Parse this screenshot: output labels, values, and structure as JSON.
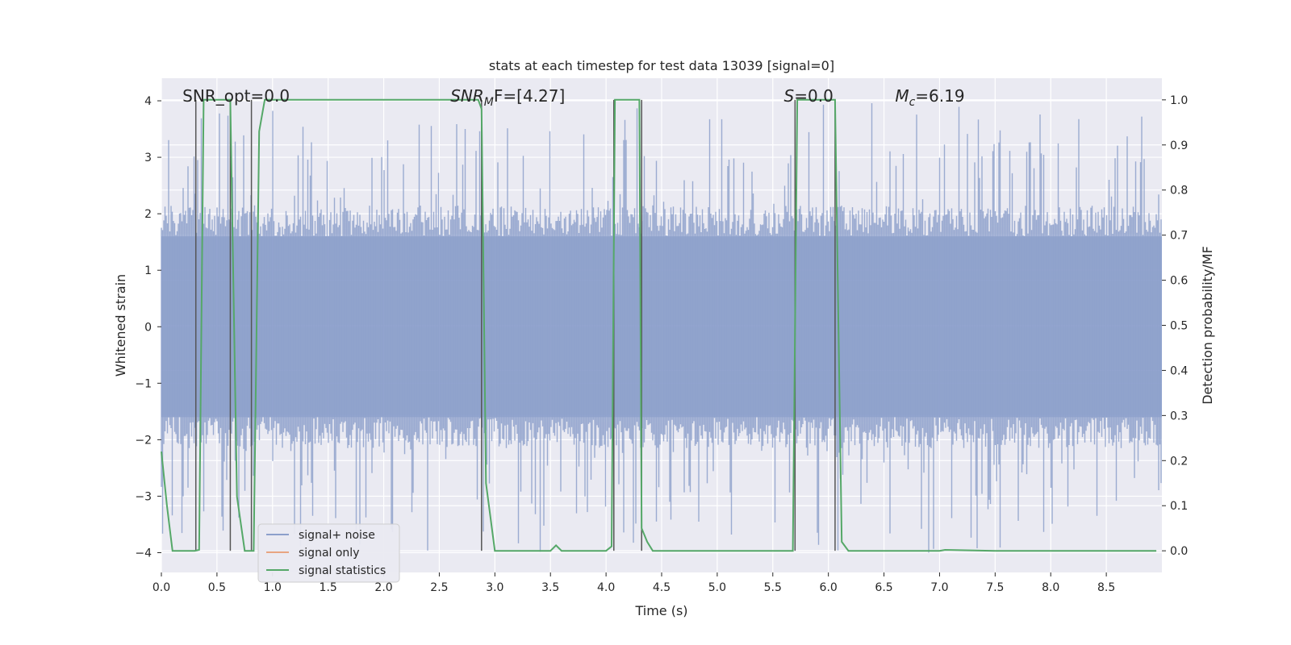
{
  "chart_data": {
    "type": "line",
    "title": "stats at each timestep for test data 13039 [signal=0]",
    "xlabel": "Time (s)",
    "ylabel": "Whitened strain",
    "ylabel_right": "Detection probability/MF",
    "xlim": [
      0.0,
      9.0
    ],
    "ylim": [
      -4.35,
      4.4
    ],
    "ylim_right": [
      -0.048,
      1.048
    ],
    "x_ticks": [
      "0.0",
      "0.5",
      "1.0",
      "1.5",
      "2.0",
      "2.5",
      "3.0",
      "3.5",
      "4.0",
      "4.5",
      "5.0",
      "5.5",
      "6.0",
      "6.5",
      "7.0",
      "7.5",
      "8.0",
      "8.5"
    ],
    "y_ticks": [
      "−4",
      "−3",
      "−2",
      "−1",
      "0",
      "1",
      "2",
      "3",
      "4"
    ],
    "y_right_ticks": [
      "0.0",
      "0.1",
      "0.2",
      "0.3",
      "0.4",
      "0.5",
      "0.6",
      "0.7",
      "0.8",
      "0.9",
      "1.0"
    ],
    "grid": true,
    "legend_position": "lower-left",
    "annotations": [
      {
        "name": "snr-opt",
        "x": 0.19,
        "y": 4.0,
        "text": "SNR_opt=0.0"
      },
      {
        "name": "snr-mf",
        "x": 2.6,
        "y": 4.0,
        "main": "SNR",
        "sub": "M",
        "rest": "F=[4.27]"
      },
      {
        "name": "s-value",
        "x": 5.6,
        "y": 4.0,
        "main": "S",
        "sub": "",
        "rest": "=0.0"
      },
      {
        "name": "chirp-mass",
        "x": 6.6,
        "y": 4.0,
        "main": "M",
        "sub": "c",
        "rest": "=6.19"
      }
    ],
    "vertical_lines_x": [
      0.31,
      0.62,
      0.81,
      2.88,
      4.07,
      4.32,
      5.7,
      6.06
    ],
    "series": [
      {
        "name": "signal+ noise",
        "color": "#8da0cb",
        "style": "noise band",
        "band_min": -4.0,
        "band_max": 4.0,
        "typical_envelope": [
          -1.6,
          1.6
        ]
      },
      {
        "name": "signal only",
        "color": "#e8a581",
        "x": [],
        "values": []
      },
      {
        "name": "signal statistics",
        "color": "#55a868",
        "axis": "right",
        "x": [
          0.0,
          0.05,
          0.1,
          0.2,
          0.3,
          0.34,
          0.38,
          0.4,
          0.5,
          0.6,
          0.62,
          0.68,
          0.75,
          0.8,
          0.83,
          0.88,
          0.93,
          1.0,
          1.5,
          2.0,
          2.5,
          2.85,
          2.88,
          2.92,
          3.0,
          3.05,
          3.1,
          3.5,
          3.55,
          3.6,
          3.65,
          3.7,
          4.0,
          4.05,
          4.08,
          4.12,
          4.2,
          4.3,
          4.32,
          4.37,
          4.42,
          4.5,
          5.0,
          5.5,
          5.68,
          5.72,
          5.78,
          5.8,
          6.0,
          6.06,
          6.12,
          6.18,
          6.5,
          7.0,
          7.05,
          7.5,
          8.0,
          8.5,
          8.95
        ],
        "values": [
          0.22,
          0.1,
          0.0,
          0.0,
          0.0,
          0.002,
          1.0,
          1.0,
          1.0,
          1.0,
          1.0,
          0.12,
          0.0,
          0.0,
          0.0,
          0.93,
          1.0,
          1.0,
          1.0,
          1.0,
          1.0,
          1.0,
          0.98,
          0.15,
          0.0,
          0.0,
          0.0,
          0.0,
          0.012,
          0.0,
          0.0,
          0.0,
          0.0,
          0.01,
          1.0,
          1.0,
          1.0,
          1.0,
          0.05,
          0.02,
          0.0,
          0.0,
          0.0,
          0.0,
          0.0,
          1.0,
          1.0,
          1.0,
          1.0,
          1.0,
          0.02,
          0.0,
          0.0,
          0.0,
          0.002,
          0.0,
          0.0,
          0.0,
          0.0
        ]
      }
    ]
  }
}
